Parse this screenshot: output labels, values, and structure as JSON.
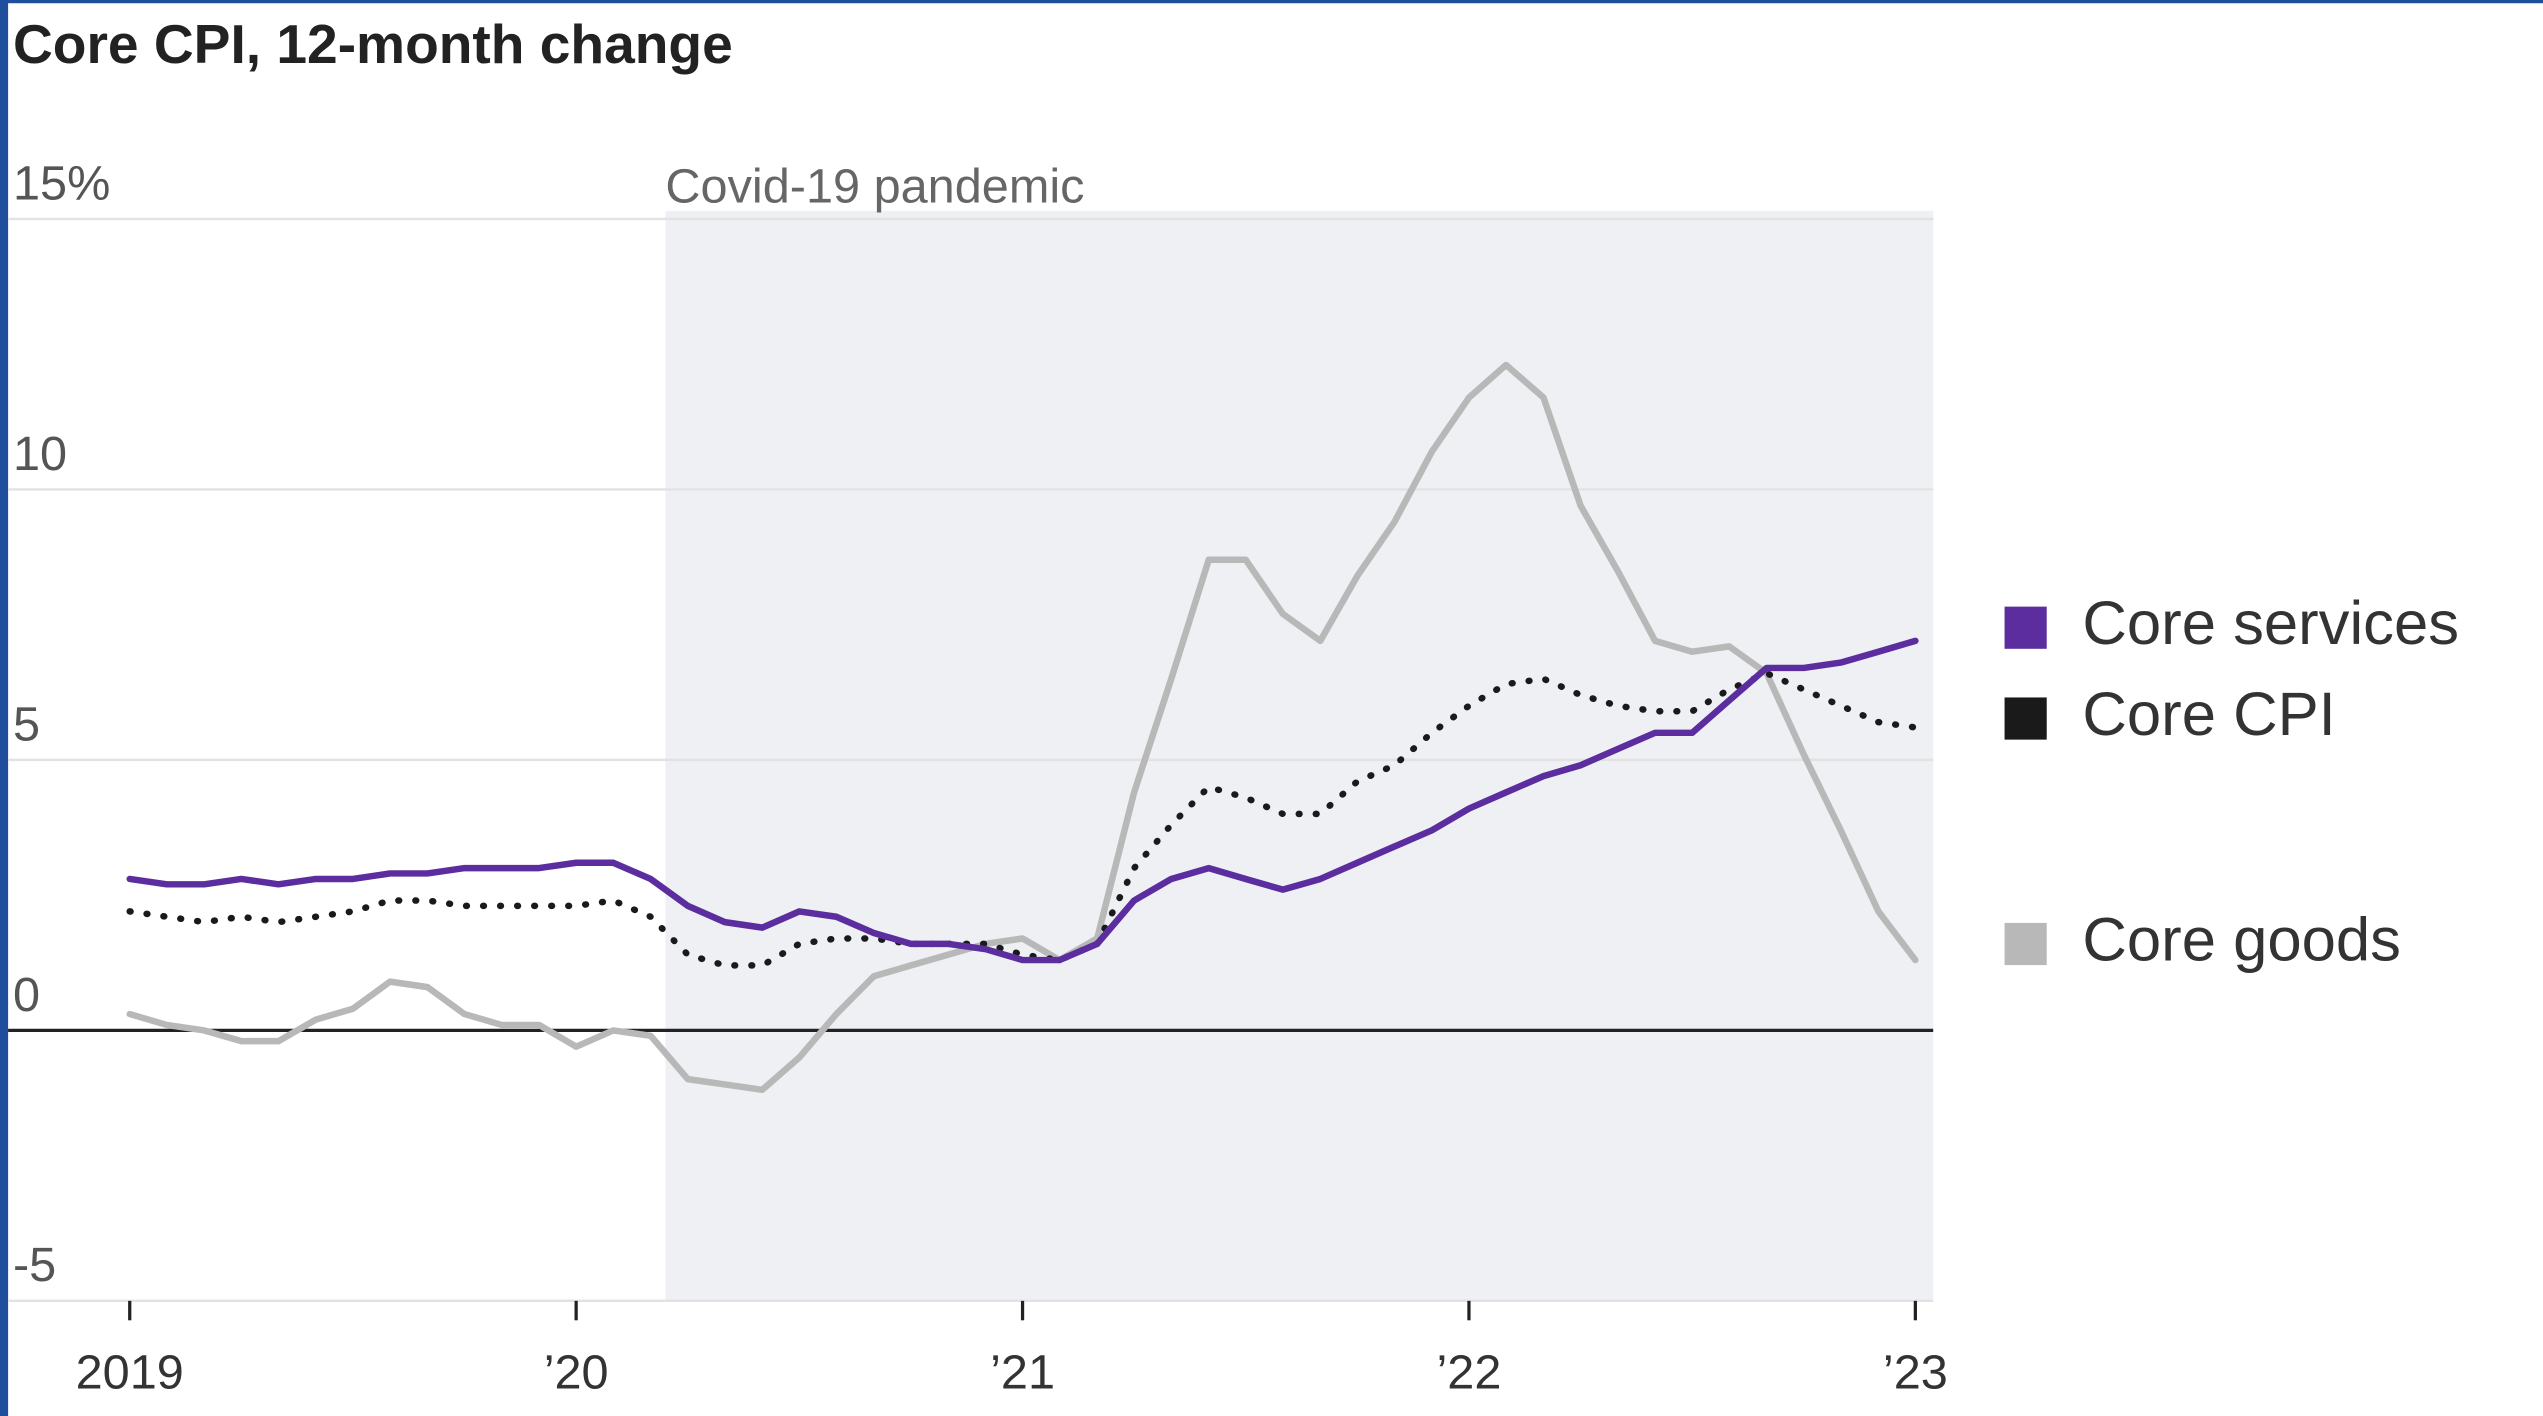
{
  "chart_data": {
    "type": "line",
    "title": "Core CPI, 12-month change",
    "x": [
      2019,
      2019.083,
      2019.167,
      2019.25,
      2019.333,
      2019.417,
      2019.5,
      2019.583,
      2019.667,
      2019.75,
      2019.833,
      2019.917,
      2020,
      2020.083,
      2020.167,
      2020.25,
      2020.333,
      2020.417,
      2020.5,
      2020.583,
      2020.667,
      2020.75,
      2020.833,
      2020.917,
      2021,
      2021.083,
      2021.167,
      2021.25,
      2021.333,
      2021.417,
      2021.5,
      2021.583,
      2021.667,
      2021.75,
      2021.833,
      2021.917,
      2022,
      2022.083,
      2022.167,
      2022.25,
      2022.333,
      2022.417,
      2022.5,
      2022.583,
      2022.667,
      2022.75,
      2022.833,
      2022.917,
      2023
    ],
    "series": [
      {
        "name": "Core services",
        "color": "#5b2d9e",
        "style": "solid",
        "values": [
          2.8,
          2.7,
          2.7,
          2.8,
          2.7,
          2.8,
          2.8,
          2.9,
          2.9,
          3.0,
          3.0,
          3.0,
          3.1,
          3.1,
          2.8,
          2.3,
          2.0,
          1.9,
          2.2,
          2.1,
          1.8,
          1.6,
          1.6,
          1.5,
          1.3,
          1.3,
          1.6,
          2.4,
          2.8,
          3.0,
          2.8,
          2.6,
          2.8,
          3.1,
          3.4,
          3.7,
          4.1,
          4.4,
          4.7,
          4.9,
          5.2,
          5.5,
          5.5,
          6.1,
          6.7,
          6.7,
          6.8,
          7.0,
          7.2
        ]
      },
      {
        "name": "Core CPI",
        "color": "#1a1a1a",
        "style": "dotted",
        "values": [
          2.2,
          2.1,
          2.0,
          2.1,
          2.0,
          2.1,
          2.2,
          2.4,
          2.4,
          2.3,
          2.3,
          2.3,
          2.3,
          2.4,
          2.1,
          1.4,
          1.2,
          1.2,
          1.6,
          1.7,
          1.7,
          1.6,
          1.6,
          1.6,
          1.4,
          1.3,
          1.6,
          3.0,
          3.8,
          4.5,
          4.3,
          4.0,
          4.0,
          4.6,
          4.9,
          5.5,
          6.0,
          6.4,
          6.5,
          6.2,
          6.0,
          5.9,
          5.9,
          6.3,
          6.6,
          6.3,
          6.0,
          5.7,
          5.6
        ]
      },
      {
        "name": "Core goods",
        "color": "#b8b8b8",
        "style": "solid",
        "values": [
          0.3,
          0.1,
          0.0,
          -0.2,
          -0.2,
          0.2,
          0.4,
          0.9,
          0.8,
          0.3,
          0.1,
          0.1,
          -0.3,
          0.0,
          -0.1,
          -0.9,
          -1.0,
          -1.1,
          -0.5,
          0.3,
          1.0,
          1.2,
          1.4,
          1.6,
          1.7,
          1.3,
          1.7,
          4.4,
          6.5,
          8.7,
          8.7,
          7.7,
          7.2,
          8.4,
          9.4,
          10.7,
          11.7,
          12.3,
          11.7,
          9.7,
          8.5,
          7.2,
          7.0,
          7.1,
          6.6,
          5.1,
          3.7,
          2.2,
          1.3
        ]
      }
    ],
    "xlim": [
      2019,
      2023
    ],
    "xticks": [
      {
        "value": 2019,
        "label": "2019"
      },
      {
        "value": 2020,
        "label": "’20"
      },
      {
        "value": 2021,
        "label": "’21"
      },
      {
        "value": 2022,
        "label": "’22"
      },
      {
        "value": 2023,
        "label": "’23"
      }
    ],
    "ylim": [
      -5,
      15
    ],
    "yticks": [
      -5,
      0,
      5,
      10,
      {
        "value": 15,
        "label": "15%"
      }
    ],
    "grid": true,
    "legend": "right",
    "annotations": [
      {
        "text": "Covid-19 pandemic",
        "x0": 2020.2,
        "x1": 2023.04
      }
    ]
  }
}
